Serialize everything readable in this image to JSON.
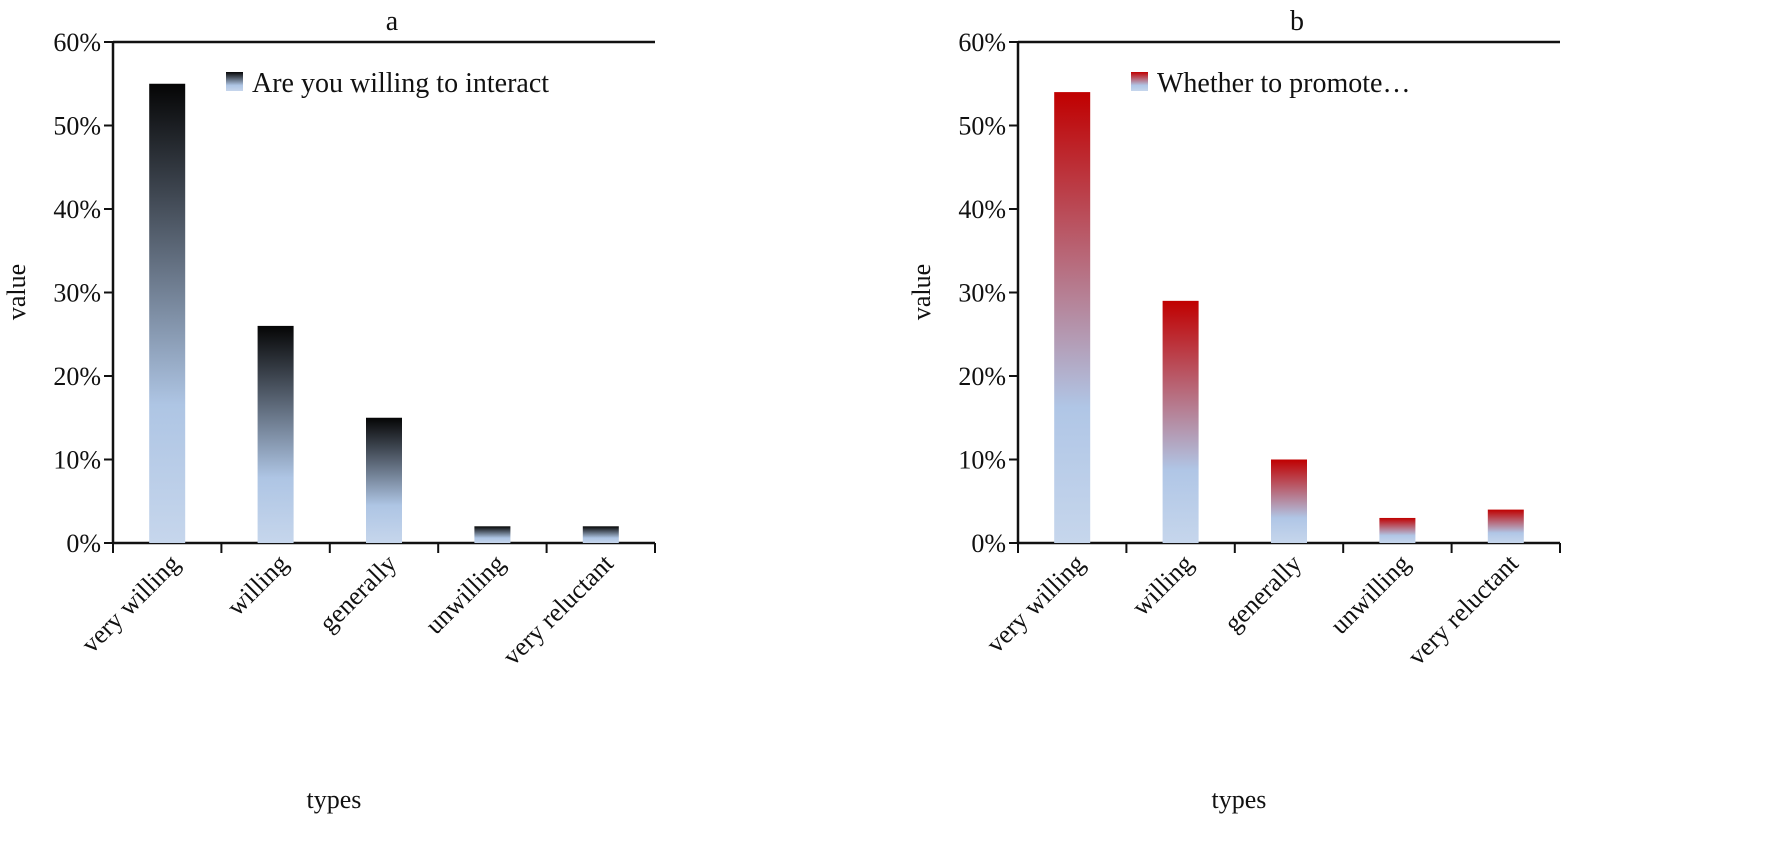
{
  "chart_data": [
    {
      "type": "bar",
      "title": "a",
      "xlabel": "types",
      "ylabel": "value",
      "categories": [
        "very willing",
        "willing",
        "generally",
        "unwilling",
        "very reluctant"
      ],
      "series": [
        {
          "name": "Are you willing to interact",
          "values": [
            55,
            26,
            15,
            2,
            2
          ]
        }
      ],
      "ylim": [
        0,
        60
      ],
      "yticks": [
        "0%",
        "10%",
        "20%",
        "30%",
        "40%",
        "50%",
        "60%"
      ],
      "grid": false,
      "legend": "top-right",
      "colors": {
        "top": "#050505",
        "bottom": "#c6d6ec"
      }
    },
    {
      "type": "bar",
      "title": "b",
      "xlabel": "types",
      "ylabel": "value",
      "categories": [
        "very willing",
        "willing",
        "generally",
        "unwilling",
        "very reluctant"
      ],
      "series": [
        {
          "name": "Whether to promote…",
          "values": [
            54,
            29,
            10,
            3,
            4
          ]
        }
      ],
      "ylim": [
        0,
        60
      ],
      "yticks": [
        "0%",
        "10%",
        "20%",
        "30%",
        "40%",
        "50%",
        "60%"
      ],
      "grid": false,
      "legend": "top-right",
      "colors": {
        "top": "#c00000",
        "bottom": "#c6d6ec"
      }
    }
  ]
}
